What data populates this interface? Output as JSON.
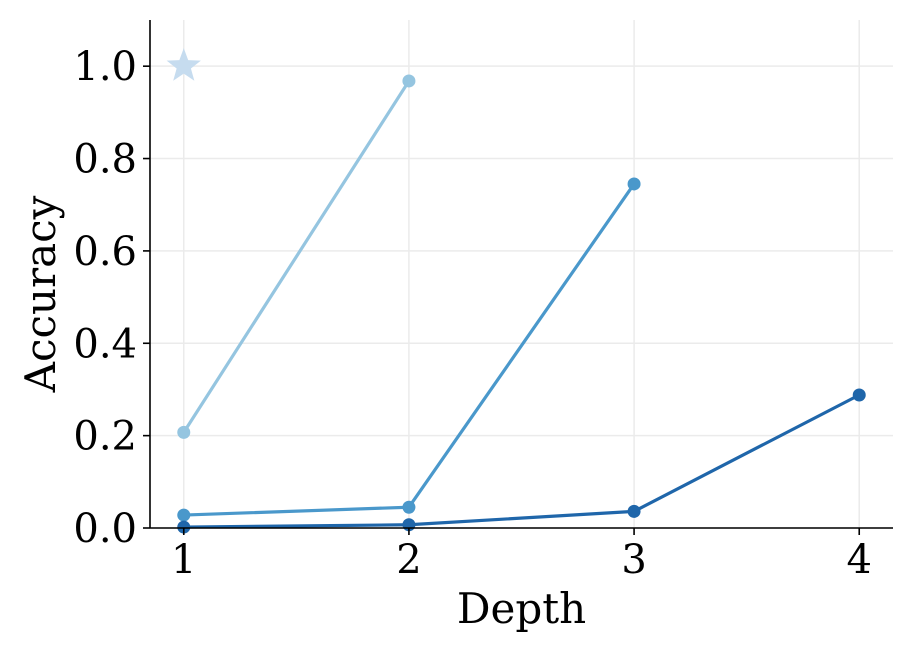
{
  "chart_data": {
    "type": "line",
    "xlabel": "Depth",
    "ylabel": "Accuracy",
    "xlim": [
      0.85,
      4.15
    ],
    "ylim": [
      0.0,
      1.1
    ],
    "x_ticks": [
      1,
      2,
      3,
      4
    ],
    "x_tick_labels": [
      "1",
      "2",
      "3",
      "4"
    ],
    "y_ticks": [
      0.0,
      0.2,
      0.4,
      0.6,
      0.8,
      1.0
    ],
    "y_tick_labels": [
      "0.0",
      "0.2",
      "0.4",
      "0.6",
      "0.8",
      "1.0"
    ],
    "grid": true,
    "legend": "none",
    "series": [
      {
        "x": [
          1,
          2
        ],
        "values": [
          0.207,
          0.968
        ],
        "color": "#95c5e0"
      },
      {
        "x": [
          1,
          2,
          3
        ],
        "values": [
          0.028,
          0.045,
          0.745
        ],
        "color": "#4a98cb"
      },
      {
        "x": [
          1,
          2,
          3,
          4
        ],
        "values": [
          0.002,
          0.007,
          0.036,
          0.288
        ],
        "color": "#1f66aa"
      }
    ],
    "markers": [
      {
        "x": 1,
        "y": 1.0,
        "shape": "star",
        "color": "#c6dcef"
      }
    ]
  }
}
